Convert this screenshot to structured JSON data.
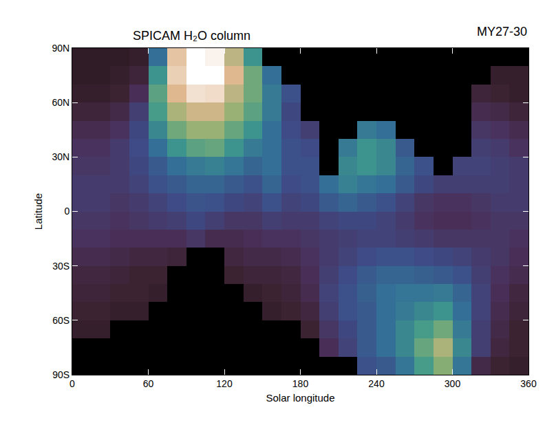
{
  "chart_data": {
    "type": "heatmap",
    "title": "SPICAM H₂O column",
    "annotations": [
      "MY27-30"
    ],
    "x_label": "Solar longitude",
    "y_label": "Latitude",
    "x": [
      7.5,
      22.5,
      37.5,
      52.5,
      67.5,
      82.5,
      97.5,
      112.5,
      127.5,
      142.5,
      157.5,
      172.5,
      187.5,
      202.5,
      217.5,
      232.5,
      247.5,
      262.5,
      277.5,
      292.5,
      307.5,
      322.5,
      337.5,
      352.5
    ],
    "y": [
      -85,
      -75,
      -65,
      -55,
      -45,
      -35,
      -25,
      -15,
      -5,
      5,
      15,
      25,
      35,
      45,
      55,
      65,
      75,
      85
    ],
    "z": [
      [
        null,
        null,
        null,
        null,
        null,
        null,
        null,
        null,
        null,
        null,
        null,
        null,
        null,
        null,
        null,
        18,
        20,
        25,
        32,
        38,
        25,
        8,
        5,
        4
      ],
      [
        null,
        null,
        null,
        null,
        null,
        null,
        null,
        null,
        null,
        null,
        null,
        null,
        null,
        10,
        15,
        20,
        24,
        28,
        35,
        42,
        28,
        14,
        7,
        5
      ],
      [
        4,
        4,
        null,
        null,
        null,
        null,
        null,
        null,
        null,
        null,
        null,
        null,
        5,
        12,
        16,
        20,
        24,
        28,
        32,
        36,
        26,
        14,
        8,
        5
      ],
      [
        5,
        5,
        4,
        4,
        null,
        null,
        null,
        null,
        null,
        null,
        4,
        5,
        7,
        14,
        18,
        20,
        24,
        26,
        28,
        30,
        24,
        15,
        9,
        6
      ],
      [
        6,
        6,
        5,
        5,
        4,
        null,
        null,
        null,
        null,
        4,
        5,
        6,
        9,
        15,
        18,
        21,
        24,
        25,
        25,
        26,
        22,
        15,
        10,
        7
      ],
      [
        7,
        7,
        6,
        5,
        5,
        null,
        null,
        null,
        5,
        6,
        6,
        7,
        10,
        14,
        17,
        20,
        22,
        22,
        21,
        20,
        18,
        14,
        11,
        9
      ],
      [
        9,
        9,
        8,
        7,
        7,
        6,
        null,
        null,
        7,
        8,
        8,
        9,
        11,
        13,
        15,
        17,
        18,
        18,
        17,
        16,
        15,
        13,
        12,
        10
      ],
      [
        11,
        11,
        10,
        10,
        10,
        10,
        12,
        9,
        9,
        10,
        11,
        11,
        12,
        13,
        14,
        15,
        15,
        14,
        13,
        12,
        12,
        12,
        12,
        11
      ],
      [
        12,
        12,
        11,
        12,
        13,
        14,
        16,
        14,
        12,
        12,
        14,
        13,
        13,
        15,
        16,
        16,
        15,
        13,
        11,
        10,
        10,
        11,
        12,
        12
      ],
      [
        13,
        13,
        12,
        13,
        15,
        17,
        19,
        18,
        16,
        15,
        18,
        15,
        16,
        20,
        22,
        20,
        18,
        15,
        12,
        11,
        11,
        12,
        13,
        13
      ],
      [
        13,
        13,
        13,
        15,
        18,
        20,
        22,
        22,
        20,
        18,
        22,
        17,
        18,
        24,
        27,
        25,
        24,
        20,
        16,
        14,
        14,
        14,
        14,
        13
      ],
      [
        12,
        12,
        13,
        16,
        20,
        24,
        26,
        27,
        25,
        22,
        24,
        18,
        18,
        null,
        28,
        30,
        28,
        22,
        18,
        null,
        15,
        15,
        14,
        13
      ],
      [
        11,
        11,
        13,
        17,
        24,
        30,
        34,
        35,
        30,
        26,
        24,
        18,
        17,
        null,
        26,
        30,
        28,
        20,
        null,
        null,
        null,
        14,
        13,
        11
      ],
      [
        9,
        9,
        11,
        16,
        28,
        36,
        40,
        40,
        35,
        30,
        24,
        17,
        14,
        null,
        null,
        26,
        24,
        null,
        null,
        null,
        null,
        12,
        11,
        9
      ],
      [
        6,
        6,
        8,
        14,
        32,
        42,
        46,
        46,
        40,
        34,
        26,
        16,
        null,
        null,
        null,
        null,
        null,
        null,
        null,
        null,
        null,
        9,
        8,
        6
      ],
      [
        4,
        4,
        5,
        10,
        34,
        48,
        55,
        54,
        44,
        36,
        26,
        18,
        null,
        null,
        null,
        null,
        null,
        null,
        null,
        null,
        null,
        6,
        5,
        4
      ],
      [
        3,
        3,
        4,
        6,
        30,
        52,
        62,
        60,
        48,
        36,
        24,
        null,
        null,
        null,
        null,
        null,
        null,
        null,
        null,
        null,
        null,
        null,
        4,
        4
      ],
      [
        3,
        3,
        3,
        4,
        24,
        50,
        64,
        58,
        44,
        30,
        null,
        null,
        null,
        null,
        null,
        null,
        null,
        null,
        null,
        null,
        null,
        null,
        null,
        null
      ]
    ],
    "zlim": [
      0,
      60
    ],
    "xlim": [
      0,
      360
    ],
    "xticks": [
      0,
      60,
      120,
      180,
      240,
      300,
      360
    ],
    "ylim": [
      -90,
      90
    ],
    "yticks": [
      {
        "value": -90,
        "label": "90S"
      },
      {
        "value": -60,
        "label": "60S"
      },
      {
        "value": -30,
        "label": "30S"
      },
      0,
      {
        "value": 30,
        "label": "30N"
      },
      {
        "value": 60,
        "label": "60N"
      },
      {
        "value": 90,
        "label": "90N"
      }
    ],
    "grid": false
  }
}
